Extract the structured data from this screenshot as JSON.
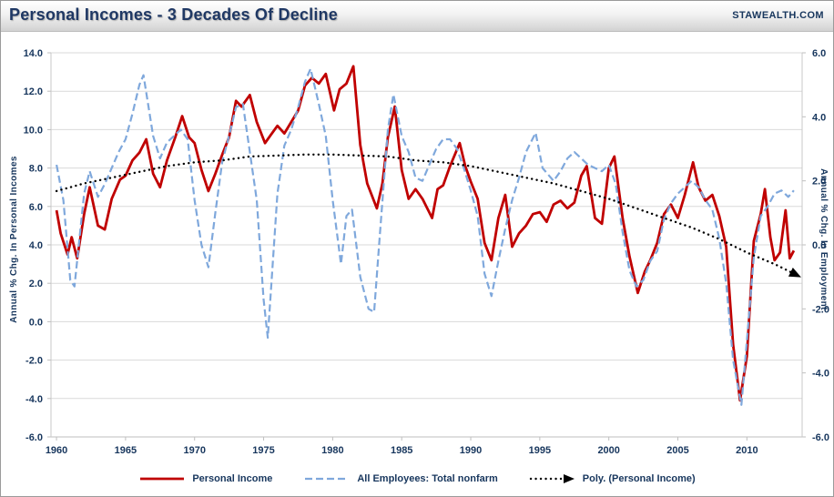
{
  "header": {
    "title": "Personal Incomes - 3 Decades Of Decline",
    "brand": "STAWEALTH.COM"
  },
  "chart_data": {
    "type": "line",
    "title": "Personal Incomes - 3 Decades Of Decline",
    "grid": true,
    "legend_position": "bottom",
    "x_axis": {
      "range": [
        1959.6,
        2014
      ],
      "ticks": [
        1960,
        1965,
        1970,
        1975,
        1980,
        1985,
        1990,
        1995,
        2000,
        2005,
        2010
      ]
    },
    "left_axis": {
      "label": "Annual % Chg. In Personal Incomes",
      "range": [
        -6,
        14
      ],
      "ticks": [
        14,
        12,
        10,
        8,
        6,
        4,
        2,
        0,
        -2,
        -4,
        -6
      ]
    },
    "right_axis": {
      "label": "Annual % Chg. In Employment",
      "range": [
        -6,
        6
      ],
      "ticks": [
        6,
        4,
        2,
        0,
        -2,
        -4,
        -6
      ]
    },
    "colors": {
      "personal_income": "#C00000",
      "employment": "#7FA8DC",
      "poly_trend": "#000000",
      "text": "#17365D",
      "gridline": "#D9D9D9"
    },
    "series": [
      {
        "name": "Personal Income",
        "axis": "left",
        "color": "#C00000",
        "style": "solid",
        "width": 2.8,
        "arrow": false,
        "points": [
          [
            1960.0,
            5.8
          ],
          [
            1960.3,
            4.6
          ],
          [
            1960.8,
            3.5
          ],
          [
            1961.1,
            4.4
          ],
          [
            1961.5,
            3.3
          ],
          [
            1962.0,
            5.6
          ],
          [
            1962.4,
            7.0
          ],
          [
            1963.0,
            5.0
          ],
          [
            1963.5,
            4.8
          ],
          [
            1964.0,
            6.4
          ],
          [
            1964.6,
            7.4
          ],
          [
            1965.0,
            7.6
          ],
          [
            1965.5,
            8.4
          ],
          [
            1966.0,
            8.8
          ],
          [
            1966.5,
            9.5
          ],
          [
            1967.0,
            7.7
          ],
          [
            1967.5,
            7.0
          ],
          [
            1968.0,
            8.4
          ],
          [
            1968.6,
            9.6
          ],
          [
            1969.1,
            10.7
          ],
          [
            1969.6,
            9.6
          ],
          [
            1970.0,
            9.3
          ],
          [
            1970.5,
            7.9
          ],
          [
            1971.0,
            6.8
          ],
          [
            1971.5,
            7.7
          ],
          [
            1972.0,
            8.7
          ],
          [
            1972.5,
            9.6
          ],
          [
            1973.0,
            11.5
          ],
          [
            1973.4,
            11.2
          ],
          [
            1974.0,
            11.8
          ],
          [
            1974.5,
            10.4
          ],
          [
            1975.1,
            9.3
          ],
          [
            1975.5,
            9.7
          ],
          [
            1976.0,
            10.2
          ],
          [
            1976.5,
            9.8
          ],
          [
            1977.0,
            10.4
          ],
          [
            1977.5,
            11.0
          ],
          [
            1978.0,
            12.3
          ],
          [
            1978.5,
            12.7
          ],
          [
            1979.0,
            12.4
          ],
          [
            1979.5,
            12.9
          ],
          [
            1980.1,
            11.0
          ],
          [
            1980.5,
            12.1
          ],
          [
            1981.0,
            12.4
          ],
          [
            1981.5,
            13.3
          ],
          [
            1982.0,
            9.2
          ],
          [
            1982.5,
            7.2
          ],
          [
            1983.2,
            5.9
          ],
          [
            1983.6,
            7.2
          ],
          [
            1984.0,
            9.6
          ],
          [
            1984.5,
            11.2
          ],
          [
            1985.0,
            7.9
          ],
          [
            1985.5,
            6.4
          ],
          [
            1986.0,
            6.9
          ],
          [
            1986.5,
            6.4
          ],
          [
            1987.2,
            5.4
          ],
          [
            1987.6,
            6.9
          ],
          [
            1988.0,
            7.1
          ],
          [
            1988.5,
            8.1
          ],
          [
            1989.2,
            9.3
          ],
          [
            1989.6,
            8.1
          ],
          [
            1990.0,
            7.3
          ],
          [
            1990.5,
            6.4
          ],
          [
            1991.0,
            4.1
          ],
          [
            1991.5,
            3.2
          ],
          [
            1992.0,
            5.4
          ],
          [
            1992.5,
            6.6
          ],
          [
            1993.0,
            3.9
          ],
          [
            1993.5,
            4.6
          ],
          [
            1994.0,
            5.0
          ],
          [
            1994.5,
            5.6
          ],
          [
            1995.0,
            5.7
          ],
          [
            1995.5,
            5.2
          ],
          [
            1996.0,
            6.1
          ],
          [
            1996.5,
            6.3
          ],
          [
            1997.0,
            5.9
          ],
          [
            1997.5,
            6.2
          ],
          [
            1998.0,
            7.6
          ],
          [
            1998.4,
            8.1
          ],
          [
            1999.0,
            5.4
          ],
          [
            1999.5,
            5.1
          ],
          [
            2000.0,
            8.0
          ],
          [
            2000.4,
            8.6
          ],
          [
            2001.0,
            5.4
          ],
          [
            2001.5,
            3.4
          ],
          [
            2002.1,
            1.5
          ],
          [
            2002.6,
            2.6
          ],
          [
            2003.0,
            3.2
          ],
          [
            2003.5,
            4.1
          ],
          [
            2004.0,
            5.6
          ],
          [
            2004.5,
            6.1
          ],
          [
            2005.0,
            5.4
          ],
          [
            2005.5,
            6.6
          ],
          [
            2006.1,
            8.3
          ],
          [
            2006.5,
            7.0
          ],
          [
            2007.0,
            6.3
          ],
          [
            2007.5,
            6.6
          ],
          [
            2008.0,
            5.5
          ],
          [
            2008.5,
            3.9
          ],
          [
            2009.0,
            -1.2
          ],
          [
            2009.5,
            -4.1
          ],
          [
            2010.0,
            -1.8
          ],
          [
            2010.5,
            4.2
          ],
          [
            2011.0,
            5.6
          ],
          [
            2011.3,
            6.9
          ],
          [
            2011.7,
            4.4
          ],
          [
            2012.0,
            3.2
          ],
          [
            2012.4,
            3.6
          ],
          [
            2012.8,
            5.8
          ],
          [
            2013.1,
            3.3
          ],
          [
            2013.4,
            3.7
          ]
        ]
      },
      {
        "name": "All Employees: Total nonfarm",
        "axis": "right",
        "color": "#7FA8DC",
        "style": "dashed",
        "width": 2.2,
        "arrow": false,
        "points": [
          [
            1960.0,
            2.5
          ],
          [
            1960.5,
            1.4
          ],
          [
            1961.0,
            -1.1
          ],
          [
            1961.3,
            -1.3
          ],
          [
            1962.0,
            1.6
          ],
          [
            1962.4,
            2.3
          ],
          [
            1963.0,
            1.5
          ],
          [
            1963.5,
            1.9
          ],
          [
            1964.0,
            2.4
          ],
          [
            1964.5,
            2.9
          ],
          [
            1965.0,
            3.3
          ],
          [
            1965.5,
            4.1
          ],
          [
            1966.0,
            5.0
          ],
          [
            1966.3,
            5.3
          ],
          [
            1967.0,
            3.4
          ],
          [
            1967.5,
            2.7
          ],
          [
            1968.0,
            3.2
          ],
          [
            1968.5,
            3.4
          ],
          [
            1969.0,
            3.6
          ],
          [
            1969.5,
            3.3
          ],
          [
            1970.0,
            1.4
          ],
          [
            1970.5,
            0.0
          ],
          [
            1971.0,
            -0.7
          ],
          [
            1971.5,
            1.0
          ],
          [
            1972.0,
            2.6
          ],
          [
            1972.5,
            3.4
          ],
          [
            1973.0,
            4.3
          ],
          [
            1973.5,
            4.4
          ],
          [
            1974.0,
            2.9
          ],
          [
            1974.5,
            1.4
          ],
          [
            1975.0,
            -1.7
          ],
          [
            1975.3,
            -2.9
          ],
          [
            1976.0,
            1.6
          ],
          [
            1976.5,
            3.1
          ],
          [
            1977.0,
            3.6
          ],
          [
            1977.5,
            4.3
          ],
          [
            1978.0,
            5.1
          ],
          [
            1978.4,
            5.5
          ],
          [
            1979.0,
            4.4
          ],
          [
            1979.5,
            3.4
          ],
          [
            1980.0,
            1.4
          ],
          [
            1980.6,
            -0.6
          ],
          [
            1981.0,
            0.9
          ],
          [
            1981.4,
            1.1
          ],
          [
            1982.0,
            -1.0
          ],
          [
            1982.6,
            -2.0
          ],
          [
            1983.0,
            -2.1
          ],
          [
            1983.4,
            0.2
          ],
          [
            1984.0,
            3.6
          ],
          [
            1984.4,
            4.7
          ],
          [
            1985.0,
            3.4
          ],
          [
            1985.5,
            2.9
          ],
          [
            1986.0,
            2.1
          ],
          [
            1986.5,
            2.0
          ],
          [
            1987.0,
            2.5
          ],
          [
            1987.5,
            3.0
          ],
          [
            1988.0,
            3.3
          ],
          [
            1988.5,
            3.3
          ],
          [
            1989.0,
            3.0
          ],
          [
            1989.5,
            2.4
          ],
          [
            1990.0,
            1.7
          ],
          [
            1990.5,
            0.9
          ],
          [
            1991.0,
            -0.9
          ],
          [
            1991.5,
            -1.6
          ],
          [
            1992.0,
            -0.5
          ],
          [
            1992.5,
            0.5
          ],
          [
            1993.0,
            1.4
          ],
          [
            1993.5,
            2.1
          ],
          [
            1994.0,
            2.9
          ],
          [
            1994.7,
            3.5
          ],
          [
            1995.2,
            2.4
          ],
          [
            1996.0,
            2.0
          ],
          [
            1996.5,
            2.3
          ],
          [
            1997.0,
            2.7
          ],
          [
            1997.5,
            2.9
          ],
          [
            1998.0,
            2.7
          ],
          [
            1998.5,
            2.5
          ],
          [
            1999.0,
            2.4
          ],
          [
            1999.5,
            2.3
          ],
          [
            2000.0,
            2.5
          ],
          [
            2000.5,
            1.9
          ],
          [
            2001.0,
            0.4
          ],
          [
            2001.5,
            -0.8
          ],
          [
            2002.0,
            -1.3
          ],
          [
            2002.5,
            -1.1
          ],
          [
            2003.0,
            -0.5
          ],
          [
            2003.5,
            -0.2
          ],
          [
            2004.0,
            0.8
          ],
          [
            2004.5,
            1.3
          ],
          [
            2005.0,
            1.6
          ],
          [
            2005.5,
            1.8
          ],
          [
            2006.0,
            2.0
          ],
          [
            2006.5,
            1.8
          ],
          [
            2007.0,
            1.4
          ],
          [
            2007.5,
            1.1
          ],
          [
            2008.0,
            0.2
          ],
          [
            2008.5,
            -1.2
          ],
          [
            2009.0,
            -3.6
          ],
          [
            2009.6,
            -5.0
          ],
          [
            2010.0,
            -3.0
          ],
          [
            2010.5,
            -0.4
          ],
          [
            2011.0,
            0.9
          ],
          [
            2011.5,
            1.2
          ],
          [
            2012.0,
            1.6
          ],
          [
            2012.5,
            1.7
          ],
          [
            2013.0,
            1.5
          ],
          [
            2013.4,
            1.7
          ]
        ]
      },
      {
        "name": "Poly. (Personal Income)",
        "axis": "left",
        "color": "#000000",
        "style": "dotted",
        "width": 2.4,
        "arrow": true,
        "points": [
          [
            1960,
            6.8
          ],
          [
            1962,
            7.2
          ],
          [
            1964,
            7.5
          ],
          [
            1966,
            7.8
          ],
          [
            1968,
            8.1
          ],
          [
            1970,
            8.3
          ],
          [
            1972,
            8.4
          ],
          [
            1974,
            8.6
          ],
          [
            1976,
            8.65
          ],
          [
            1978,
            8.7
          ],
          [
            1980,
            8.7
          ],
          [
            1982,
            8.65
          ],
          [
            1984,
            8.6
          ],
          [
            1986,
            8.4
          ],
          [
            1988,
            8.3
          ],
          [
            1990,
            8.1
          ],
          [
            1992,
            7.8
          ],
          [
            1994,
            7.5
          ],
          [
            1996,
            7.2
          ],
          [
            1998,
            6.8
          ],
          [
            2000,
            6.4
          ],
          [
            2002,
            5.9
          ],
          [
            2004,
            5.4
          ],
          [
            2006,
            4.9
          ],
          [
            2008,
            4.3
          ],
          [
            2010,
            3.6
          ],
          [
            2012,
            3.0
          ],
          [
            2013.4,
            2.5
          ]
        ]
      }
    ]
  }
}
